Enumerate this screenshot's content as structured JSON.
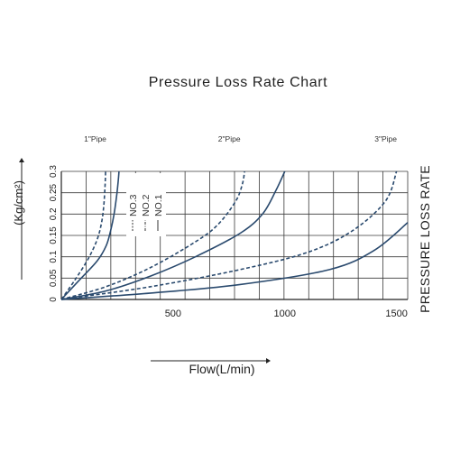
{
  "chart_data": {
    "type": "line",
    "title": "Pressure Loss Rate Chart",
    "xlabel": "Flow(L/min)",
    "ylabel": "(Kg/cm²)",
    "right_label": "PRESSURE LOSS RATE",
    "xlim": [
      0,
      1550
    ],
    "ylim": [
      0,
      0.3
    ],
    "x_ticks": [
      "500",
      "1000",
      "1500"
    ],
    "x_tick_values": [
      500,
      1000,
      1500
    ],
    "y_ticks": [
      "0",
      "0.05",
      "0.1",
      "0.15",
      "0.2",
      "0.25",
      "0.3"
    ],
    "y_tick_values": [
      0,
      0.05,
      0.1,
      0.15,
      0.2,
      0.25,
      0.3
    ],
    "grid": true,
    "pipe_labels": [
      {
        "text": "1\"Pipe",
        "x": 200
      },
      {
        "text": "2\"Pipe",
        "x": 800
      },
      {
        "text": "3\"Pipe",
        "x": 1500
      }
    ],
    "legend": [
      {
        "text": "NO.3",
        "dash": "dashed"
      },
      {
        "text": "NO.2",
        "dash": "dashdot"
      },
      {
        "text": "NO.1",
        "dash": "solid"
      }
    ],
    "series": [
      {
        "pipe": "1\"",
        "style": "solid",
        "x": [
          0,
          80,
          160,
          200,
          220,
          236,
          248,
          255,
          258
        ],
        "y": [
          0,
          0.045,
          0.09,
          0.125,
          0.16,
          0.2,
          0.245,
          0.28,
          0.3
        ]
      },
      {
        "pipe": "1\"",
        "style": "dashed",
        "x": [
          0,
          60,
          120,
          160,
          180,
          190,
          196,
          198
        ],
        "y": [
          0,
          0.045,
          0.095,
          0.14,
          0.18,
          0.22,
          0.27,
          0.3
        ]
      },
      {
        "pipe": "2\"",
        "style": "solid",
        "x": [
          0,
          200,
          400,
          600,
          800,
          900,
          960,
          1000
        ],
        "y": [
          0,
          0.02,
          0.055,
          0.1,
          0.155,
          0.2,
          0.255,
          0.3
        ]
      },
      {
        "pipe": "2\"",
        "style": "dashed",
        "x": [
          0,
          200,
          400,
          600,
          700,
          780,
          810,
          820
        ],
        "y": [
          0,
          0.03,
          0.075,
          0.135,
          0.175,
          0.23,
          0.27,
          0.3
        ]
      },
      {
        "pipe": "3\"",
        "style": "solid",
        "x": [
          0,
          400,
          800,
          1200,
          1400,
          1550
        ],
        "y": [
          0,
          0.015,
          0.035,
          0.07,
          0.115,
          0.18
        ]
      },
      {
        "pipe": "3\"",
        "style": "dashed",
        "x": [
          0,
          400,
          800,
          1100,
          1300,
          1450,
          1500
        ],
        "y": [
          0,
          0.03,
          0.07,
          0.11,
          0.16,
          0.23,
          0.3
        ]
      }
    ]
  }
}
